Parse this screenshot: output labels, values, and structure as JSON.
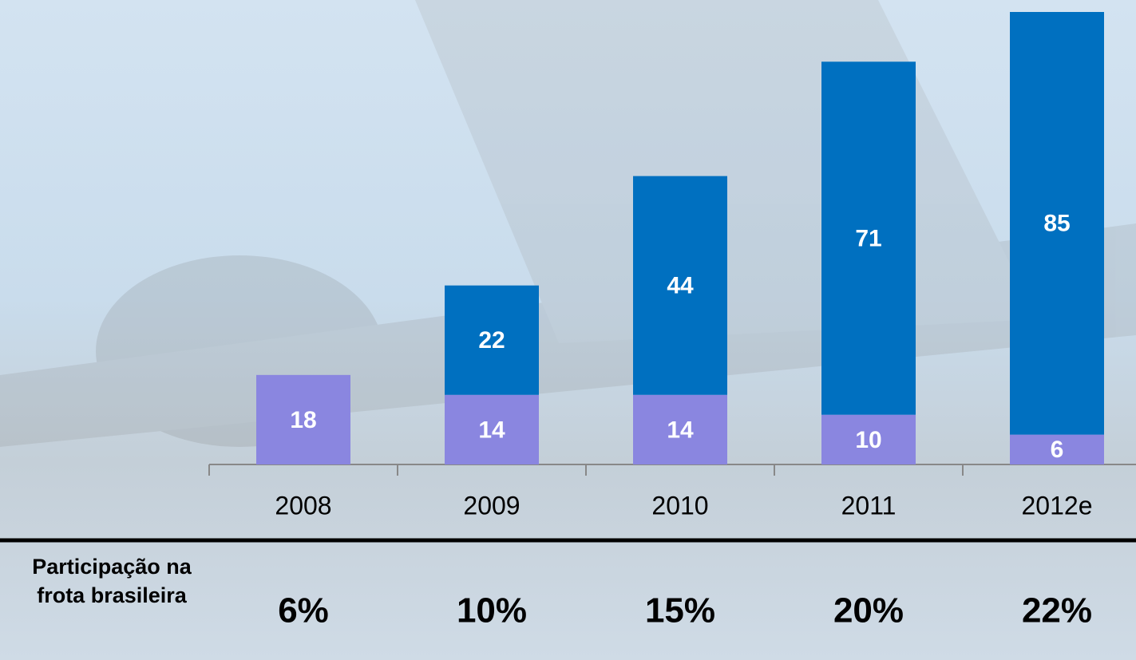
{
  "chart_data": {
    "type": "stacked-bar",
    "categories": [
      "2008",
      "2009",
      "2010",
      "2011",
      "2012e"
    ],
    "series": [
      {
        "color": "#8a86e0",
        "values": [
          18,
          14,
          14,
          10,
          6
        ]
      },
      {
        "color": "#0070c0",
        "values": [
          null,
          22,
          44,
          71,
          85
        ]
      }
    ],
    "share": {
      "label": "Participação na frota brasileira",
      "values": [
        6,
        10,
        15,
        20,
        22
      ],
      "value_labels": [
        "6%",
        "10%",
        "15%",
        "20%",
        "22%"
      ]
    }
  }
}
